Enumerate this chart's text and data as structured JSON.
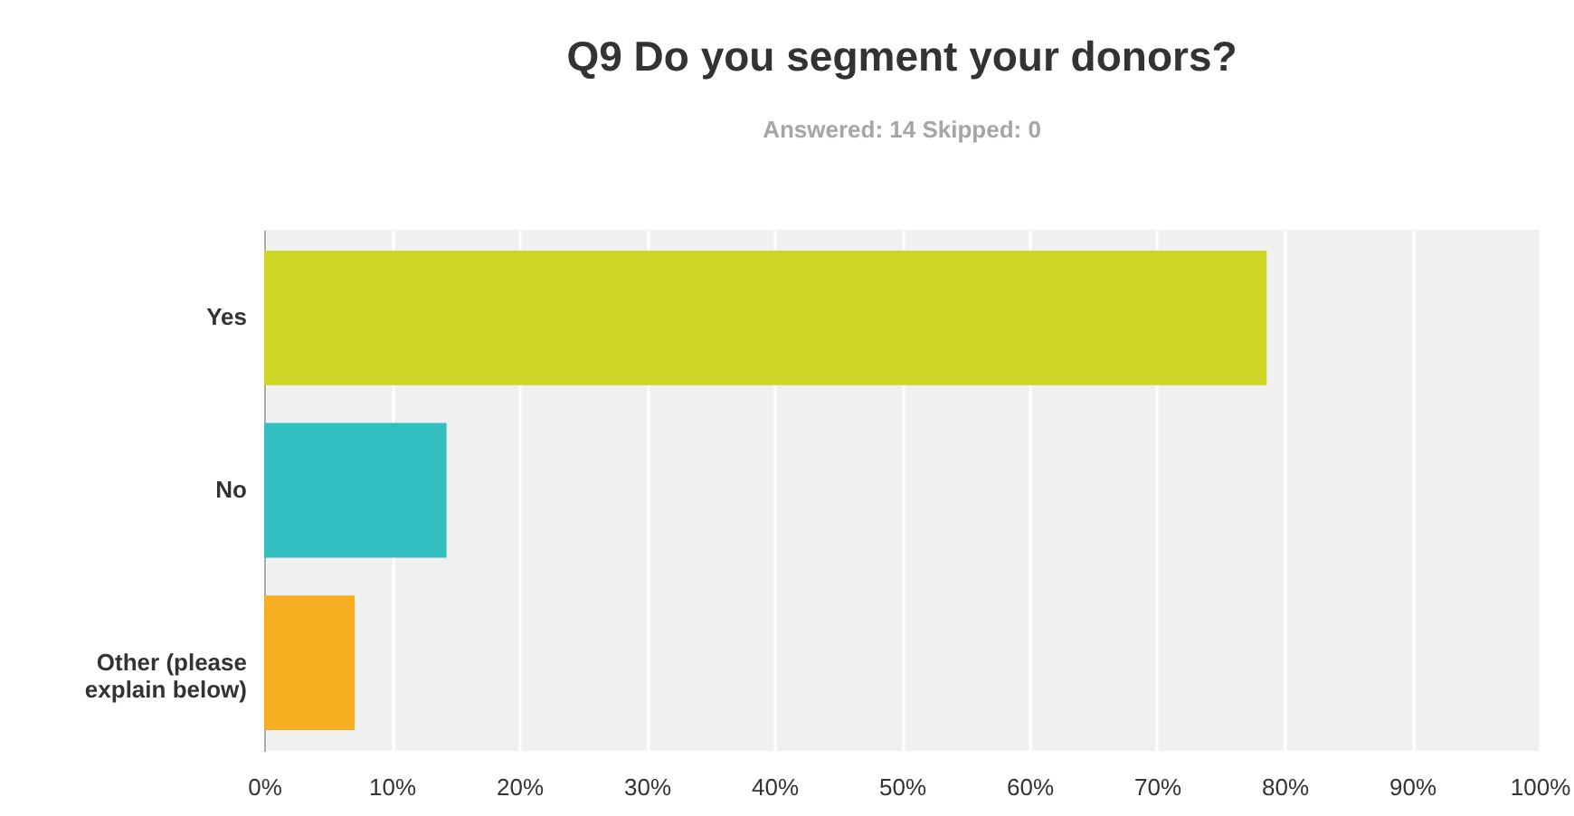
{
  "chart_data": {
    "type": "bar",
    "orientation": "horizontal",
    "title": "Q9 Do you segment your donors?",
    "subtitle": "Answered: 14    Skipped: 0",
    "categories": [
      "Yes",
      "No",
      "Other (please explain below)"
    ],
    "values": [
      78.6,
      14.3,
      7.1
    ],
    "colors": [
      "#cdd527",
      "#33bfc1",
      "#f7ae21"
    ],
    "xlim": [
      0,
      100
    ],
    "xticks": [
      {
        "value": 0,
        "label": "0%"
      },
      {
        "value": 10,
        "label": "10%"
      },
      {
        "value": 20,
        "label": "20%"
      },
      {
        "value": 30,
        "label": "30%"
      },
      {
        "value": 40,
        "label": "40%"
      },
      {
        "value": 50,
        "label": "50%"
      },
      {
        "value": 60,
        "label": "60%"
      },
      {
        "value": 70,
        "label": "70%"
      },
      {
        "value": 80,
        "label": "80%"
      },
      {
        "value": 90,
        "label": "90%"
      },
      {
        "value": 100,
        "label": "100%"
      }
    ],
    "grid": "x"
  }
}
